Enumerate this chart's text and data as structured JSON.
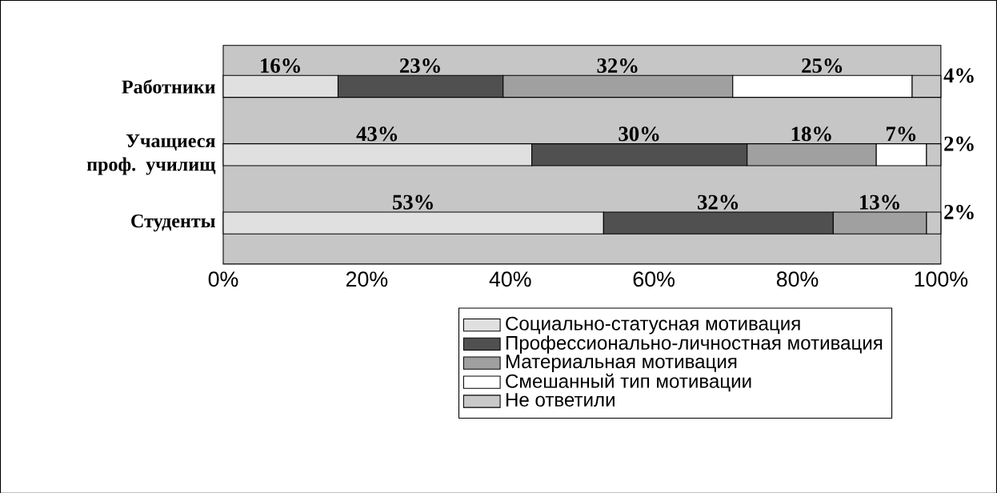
{
  "chart_data": {
    "type": "bar",
    "orientation": "horizontal",
    "stacked": true,
    "categories": [
      "Работники",
      "Учащиеся проф. училищ",
      "Студенты"
    ],
    "series": [
      {
        "name": "Социально-статусная мотивация",
        "color": "#e0e0e0",
        "values": [
          16,
          43,
          53
        ],
        "value_labels": [
          "16%",
          "43%",
          "53%"
        ]
      },
      {
        "name": "Профессионально-личностная мотивация",
        "color": "#505050",
        "values": [
          23,
          30,
          32
        ],
        "value_labels": [
          "23%",
          "30%",
          "32%"
        ]
      },
      {
        "name": "Материальная мотивация",
        "color": "#a0a0a0",
        "values": [
          32,
          18,
          13
        ],
        "value_labels": [
          "32%",
          "18%",
          "13%"
        ]
      },
      {
        "name": "Смешанный тип мотивации",
        "color": "#ffffff",
        "values": [
          25,
          7,
          null
        ],
        "value_labels": [
          "25%",
          "7%",
          null
        ]
      },
      {
        "name": "Не ответили",
        "color": "#c8c8c8",
        "values": [
          4,
          2,
          2
        ],
        "value_labels": [
          "4%",
          "2%",
          "2%"
        ]
      }
    ],
    "xlim": [
      0,
      100
    ],
    "xticks": [
      {
        "value": 0,
        "label": "0%"
      },
      {
        "value": 20,
        "label": "20%"
      },
      {
        "value": 40,
        "label": "40%"
      },
      {
        "value": 60,
        "label": "60%"
      },
      {
        "value": 80,
        "label": "80%"
      },
      {
        "value": 100,
        "label": "100%"
      }
    ],
    "legend": "bottom"
  }
}
